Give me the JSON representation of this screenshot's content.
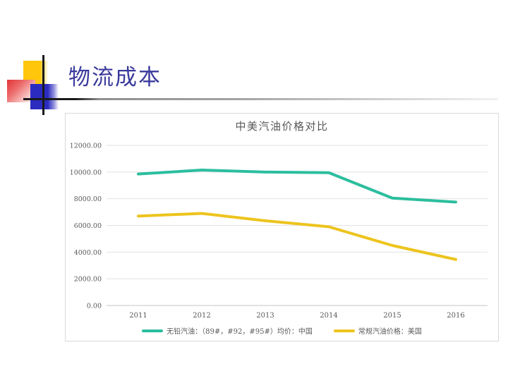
{
  "slide": {
    "title": "物流成本",
    "title_color": "#3a3a9d"
  },
  "decoration": {
    "yellow_square": "#ffc60b",
    "red_square": "#e23434",
    "blue_square": "#2b2bc0",
    "cross_lines": "#1a1a1a",
    "rule_gradient_start": "#1a1a1a",
    "rule_gradient_end": "#f2f2f2"
  },
  "chart_data": {
    "type": "line",
    "title": "中美汽油价格对比",
    "categories": [
      "2011",
      "2012",
      "2013",
      "2014",
      "2015",
      "2016"
    ],
    "series": [
      {
        "name": "无铅汽油：（89#，#92，#95#）均价：中国",
        "color": "#2cbe9e",
        "values": [
          9850,
          10150,
          10000,
          9950,
          8050,
          7750
        ]
      },
      {
        "name": "常规汽油价格：美国",
        "color": "#edc41e",
        "values": [
          6700,
          6900,
          6350,
          5900,
          4500,
          3450
        ]
      }
    ],
    "xlabel": "",
    "ylabel": "",
    "ylim": [
      0,
      12000
    ],
    "ytick_step": 2000,
    "ytick_labels": [
      "0.00",
      "2000.00",
      "4000.00",
      "6000.00",
      "8000.00",
      "10000.00",
      "12000.00"
    ],
    "grid": true,
    "gridline_color": "#e2e2e2",
    "axis_line_color": "#c6c6c6",
    "tick_label_color": "#595959",
    "legend_position": "bottom"
  }
}
